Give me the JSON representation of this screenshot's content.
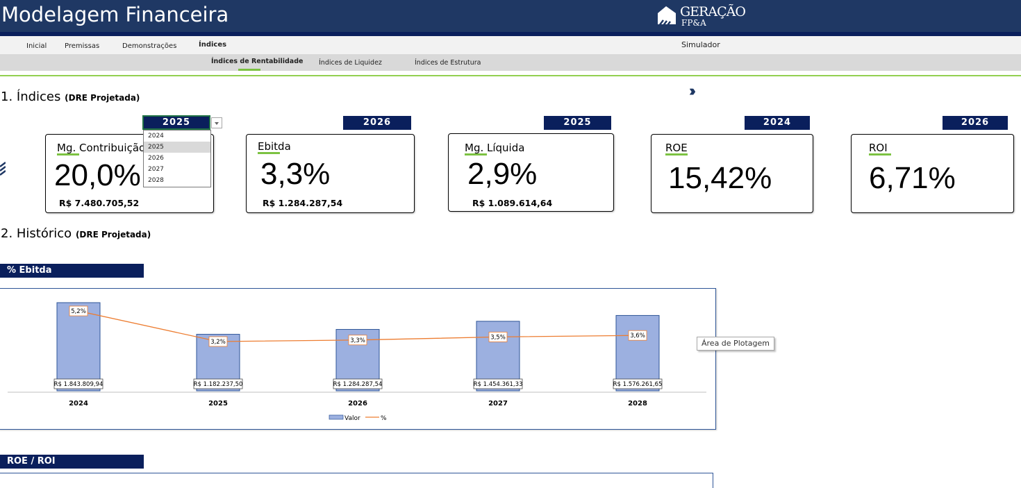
{
  "header": {
    "title": "Modelagem Financeira",
    "logo_line1": "GERAÇÃO",
    "logo_line2": "FP&A"
  },
  "menu": {
    "items": [
      "Inicial",
      "Premissas",
      "Demonstrações",
      "Índices"
    ],
    "active": "Índices",
    "simulador": "Simulador"
  },
  "submenu": {
    "items": [
      "Índices de Rentabilidade",
      "Índices de Liquidez",
      "Índices de Estrutura"
    ],
    "active": "Índices de Rentabilidade"
  },
  "section1": {
    "title": "1. Índices",
    "subtitle": "(DRE Projetada)",
    "chevrons": "›››"
  },
  "section2": {
    "title": "2. Histórico",
    "subtitle": "(DRE Projetada)"
  },
  "year_select": {
    "value": "2025",
    "options": [
      "2024",
      "2025",
      "2026",
      "2027",
      "2028"
    ],
    "highlighted": "2025"
  },
  "cards": [
    {
      "year": "2025",
      "title": "Mg. Contribuição",
      "value": "20,0%",
      "amount": "R$ 7.480.705,52"
    },
    {
      "year": "2026",
      "title": "Ebitda",
      "value": "3,3%",
      "amount": "R$ 1.284.287,54"
    },
    {
      "year": "2025",
      "title": "Mg. Líquida",
      "value": "2,9%",
      "amount": "R$ 1.089.614,64"
    },
    {
      "year": "2024",
      "title": "ROE",
      "value": "15,42%",
      "amount": ""
    },
    {
      "year": "2026",
      "title": "ROI",
      "value": "6,71%",
      "amount": ""
    }
  ],
  "ebitda_chart_label": "% Ebitda",
  "roe_chart_label": "ROE / ROI",
  "tooltip": "Área de Plotagem",
  "colors": {
    "navy": "#0a1f5c",
    "header": "#1f3864",
    "accent_green": "#7cc242",
    "bar_fill": "#9cb0e0",
    "bar_stroke": "#2e5597",
    "line": "#ed7d31"
  },
  "chart_data": {
    "type": "bar",
    "categories": [
      "2024",
      "2025",
      "2026",
      "2027",
      "2028"
    ],
    "series": [
      {
        "name": "Valor",
        "type": "bar",
        "values": [
          1843809.94,
          1182237.5,
          1284287.54,
          1454361.33,
          1576261.65
        ],
        "labels": [
          "R$ 1.843.809,94",
          "R$ 1.182.237,50",
          "R$ 1.284.287,54",
          "R$ 1.454.361,33",
          "R$ 1.576.261,65"
        ]
      },
      {
        "name": "%",
        "type": "line",
        "values": [
          5.2,
          3.2,
          3.3,
          3.5,
          3.6
        ],
        "labels": [
          "5,2%",
          "3,2%",
          "3,3%",
          "3,5%",
          "3,6%"
        ]
      }
    ],
    "legend": [
      "Valor",
      "%"
    ],
    "legend_position": "bottom",
    "grid": false
  }
}
